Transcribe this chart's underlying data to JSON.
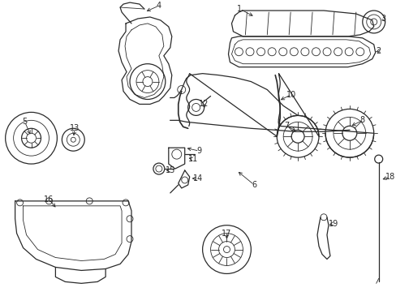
{
  "bg_color": "#ffffff",
  "line_color": "#2a2a2a",
  "fig_width": 4.89,
  "fig_height": 3.6,
  "dpi": 100,
  "label_fs": 7.0
}
